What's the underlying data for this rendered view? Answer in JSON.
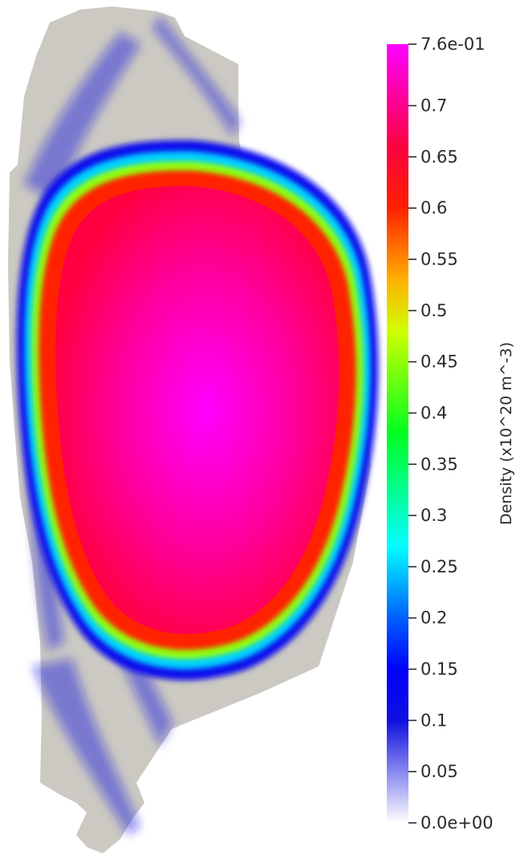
{
  "chart_data": {
    "type": "heatmap",
    "title": "",
    "colorbar": {
      "label": "Density (x10^20 m^-3)",
      "range": [
        0.0,
        0.76
      ],
      "orientation": "vertical",
      "placement": "right",
      "ticks": [
        {
          "value": 0.76,
          "label": "7.6e-01"
        },
        {
          "value": 0.7,
          "label": "0.7"
        },
        {
          "value": 0.65,
          "label": "0.65"
        },
        {
          "value": 0.6,
          "label": "0.6"
        },
        {
          "value": 0.55,
          "label": "0.55"
        },
        {
          "value": 0.5,
          "label": "0.5"
        },
        {
          "value": 0.45,
          "label": "0.45"
        },
        {
          "value": 0.4,
          "label": "0.4"
        },
        {
          "value": 0.35,
          "label": "0.35"
        },
        {
          "value": 0.3,
          "label": "0.3"
        },
        {
          "value": 0.25,
          "label": "0.25"
        },
        {
          "value": 0.2,
          "label": "0.2"
        },
        {
          "value": 0.15,
          "label": "0.15"
        },
        {
          "value": 0.1,
          "label": "0.1"
        },
        {
          "value": 0.05,
          "label": "0.05"
        },
        {
          "value": 0.0,
          "label": "0.0e+00"
        }
      ],
      "colormap": [
        {
          "value": 0.0,
          "color": "#ffffff"
        },
        {
          "value": 0.1,
          "color": "#1010e0"
        },
        {
          "value": 0.15,
          "color": "#0000ff"
        },
        {
          "value": 0.2,
          "color": "#0060ff"
        },
        {
          "value": 0.27,
          "color": "#00ffff"
        },
        {
          "value": 0.38,
          "color": "#00ff20"
        },
        {
          "value": 0.48,
          "color": "#d0ff00"
        },
        {
          "value": 0.53,
          "color": "#ffb000"
        },
        {
          "value": 0.6,
          "color": "#ff2000"
        },
        {
          "value": 0.66,
          "color": "#ff0040"
        },
        {
          "value": 0.76,
          "color": "#ff00ff"
        }
      ]
    },
    "field": {
      "background_color": "#cbc9c2",
      "core_peak_value": 0.76,
      "core_edge_value": 0.66,
      "separatrix_values": [
        0.6,
        0.45,
        0.25,
        0.12
      ],
      "scrape_off_value": 0.1
    }
  }
}
